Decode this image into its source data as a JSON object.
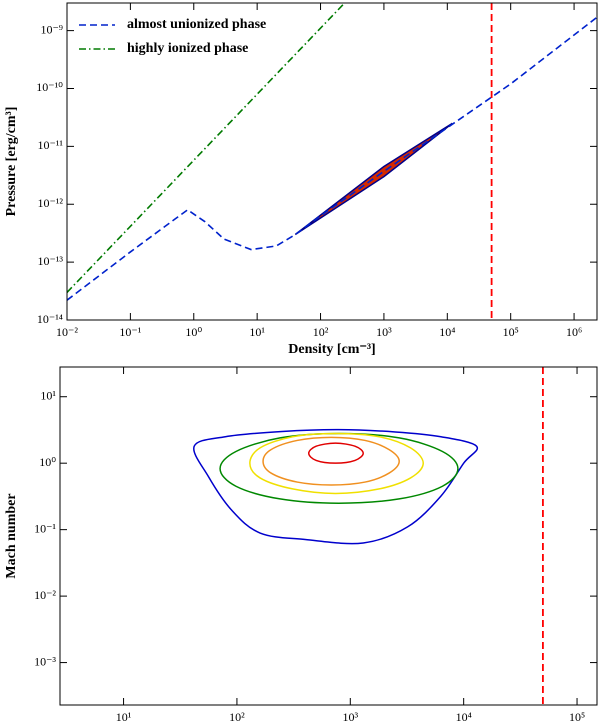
{
  "chart_data": [
    {
      "type": "line",
      "xscale": "log",
      "yscale": "log",
      "xlabel": "Density [cm⁻³]",
      "ylabel": "Pressure [erg/cm³]",
      "xlim": [
        0.01,
        2300000
      ],
      "ylim": [
        1e-14,
        3e-09
      ],
      "xticks": [
        {
          "value": 0.01,
          "label": "10⁻²"
        },
        {
          "value": 0.1,
          "label": "10⁻¹"
        },
        {
          "value": 1,
          "label": "10⁰"
        },
        {
          "value": 10,
          "label": "10¹"
        },
        {
          "value": 100,
          "label": "10²"
        },
        {
          "value": 1000,
          "label": "10³"
        },
        {
          "value": 10000,
          "label": "10⁴"
        },
        {
          "value": 100000,
          "label": "10⁵"
        },
        {
          "value": 1000000,
          "label": "10⁶"
        }
      ],
      "yticks": [
        {
          "value": 1e-14,
          "label": "10⁻¹⁴"
        },
        {
          "value": 1e-13,
          "label": "10⁻¹³"
        },
        {
          "value": 1e-12,
          "label": "10⁻¹²"
        },
        {
          "value": 1e-11,
          "label": "10⁻¹¹"
        },
        {
          "value": 1e-10,
          "label": "10⁻¹⁰"
        },
        {
          "value": 1e-09,
          "label": "10⁻⁹"
        }
      ],
      "legend": "upper left",
      "series": [
        {
          "name": "almost unionized phase",
          "color": "#0022cc",
          "linestyle": "dashed",
          "x": [
            0.01,
            0.1,
            0.5,
            0.8,
            1.5,
            3,
            8,
            20,
            40,
            100,
            1000,
            10000,
            100000,
            2300000
          ],
          "y": [
            2.2e-14,
            1.5e-13,
            5.5e-13,
            8e-13,
            5e-13,
            2.5e-13,
            1.65e-13,
            1.9e-13,
            3e-13,
            6.3e-13,
            3.7e-12,
            2.1e-11,
            1.2e-10,
            1.7e-09
          ]
        },
        {
          "name": "highly ionized phase",
          "color": "#007a00",
          "linestyle": "dashdot",
          "x": [
            0.01,
            240
          ],
          "y": [
            3e-14,
            3e-09
          ]
        }
      ],
      "region": {
        "x": [
          40,
          1000,
          12000,
          1000
        ],
        "y": [
          3e-13,
          3e-12,
          2.5e-11,
          4.5e-12
        ],
        "color": "#d42a00",
        "edge": "#00008b"
      },
      "vline": {
        "x": 50000,
        "color": "#ff0000"
      }
    },
    {
      "type": "contour",
      "xscale": "log",
      "yscale": "log",
      "xlabel": "Density [cm⁻³]",
      "ylabel": "Mach number",
      "xlim": [
        2.75,
        150000
      ],
      "ylim": [
        0.00023,
        28
      ],
      "xticks": [
        {
          "value": 10,
          "label": "10¹"
        },
        {
          "value": 100,
          "label": "10²"
        },
        {
          "value": 1000,
          "label": "10³"
        },
        {
          "value": 10000,
          "label": "10⁴"
        },
        {
          "value": 100000,
          "label": "10⁵"
        }
      ],
      "yticks": [
        {
          "value": 0.001,
          "label": "10⁻³"
        },
        {
          "value": 0.01,
          "label": "10⁻²"
        },
        {
          "value": 0.1,
          "label": "10⁻¹"
        },
        {
          "value": 1,
          "label": "10⁰"
        },
        {
          "value": 10,
          "label": "10¹"
        }
      ],
      "contours": [
        {
          "color": "#0000cc",
          "x": [
            42,
            79,
            250,
            790,
            2500,
            6300,
            13000,
            10000,
            6300,
            3200,
            1300,
            400,
            160,
            89,
            56
          ],
          "y": [
            1.8,
            2.5,
            3.0,
            3.2,
            2.95,
            2.5,
            1.8,
            1.0,
            0.32,
            0.11,
            0.063,
            0.071,
            0.089,
            0.2,
            0.63
          ]
        },
        {
          "color": "#008800",
          "x": [
            8900,
            6500,
            2700,
            790,
            240,
            98,
            71,
            98,
            240,
            790,
            2700,
            6500
          ],
          "y": [
            0.83,
            1.5,
            2.4,
            2.8,
            2.4,
            1.5,
            0.83,
            0.45,
            0.29,
            0.25,
            0.29,
            0.45
          ]
        },
        {
          "color": "#f0e000",
          "x": [
            4400,
            3400,
            1800,
            740,
            310,
            160,
            130,
            160,
            310,
            740,
            1800,
            3400
          ],
          "y": [
            1.0,
            1.7,
            2.5,
            2.8,
            2.5,
            1.7,
            1.0,
            0.6,
            0.41,
            0.35,
            0.41,
            0.6
          ]
        },
        {
          "color": "#f09020",
          "x": [
            2700,
            2200,
            1350,
            680,
            340,
            200,
            170,
            200,
            340,
            680,
            1350,
            2200
          ],
          "y": [
            1.07,
            1.6,
            2.2,
            2.45,
            2.2,
            1.6,
            1.07,
            0.71,
            0.52,
            0.47,
            0.52,
            0.71
          ]
        },
        {
          "color": "#e00000",
          "x": [
            1300,
            1100,
            740,
            500,
            430,
            500,
            740,
            1100
          ],
          "y": [
            1.41,
            1.8,
            2.0,
            1.8,
            1.41,
            1.1,
            1.0,
            1.1
          ]
        }
      ],
      "vline": {
        "x": 50000,
        "color": "#ff0000"
      }
    }
  ]
}
